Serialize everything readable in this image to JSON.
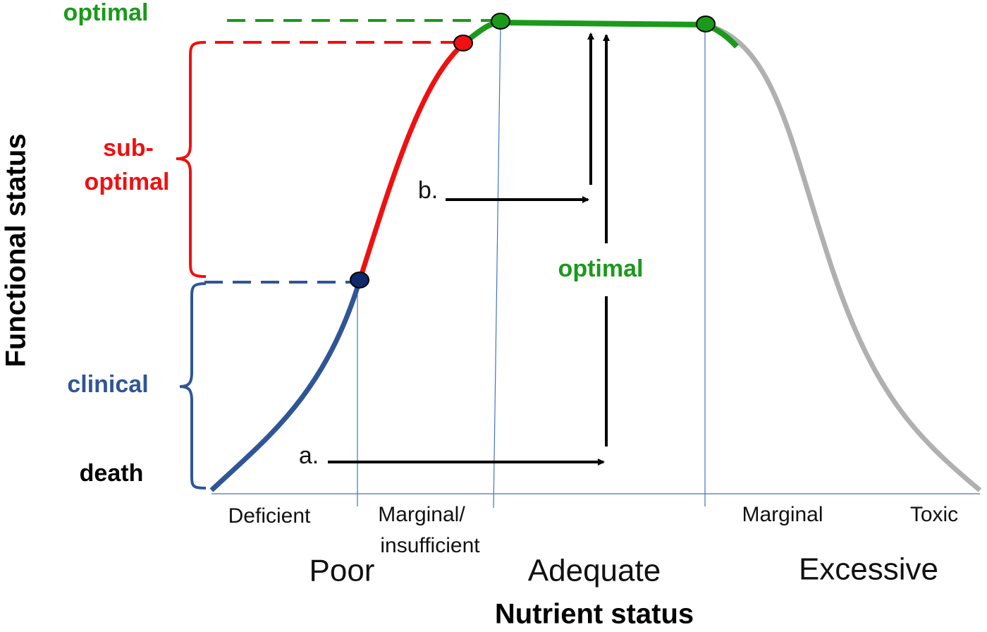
{
  "axes": {
    "y_label": "Functional status",
    "x_label": "Nutrient status"
  },
  "functional_levels": {
    "optimal": "optimal",
    "sub_optimal": [
      "sub-",
      "optimal"
    ],
    "clinical": "clinical",
    "death": "death"
  },
  "nutrient_ranges": {
    "deficient": "Deficient",
    "marginal_insufficient": [
      "Marginal/",
      "insufficient"
    ],
    "marginal": "Marginal",
    "toxic": "Toxic"
  },
  "nutrient_status": {
    "poor": "Poor",
    "adequate": "Adequate",
    "excessive": "Excessive"
  },
  "arrows": {
    "a": "a.",
    "b": "b.",
    "optimal": "optimal"
  }
}
